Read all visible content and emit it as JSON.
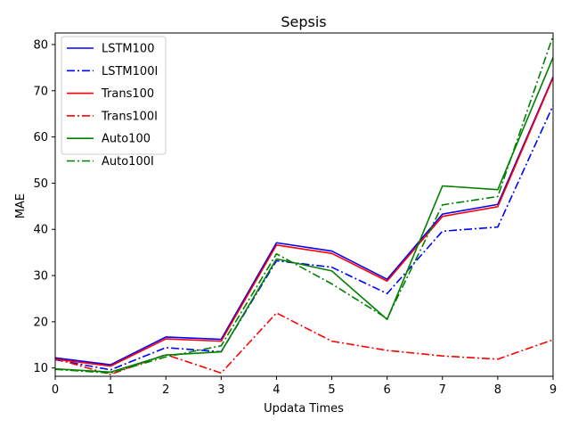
{
  "chart_data": {
    "type": "line",
    "title": "Sepsis",
    "xlabel": "Updata Times",
    "ylabel": "MAE",
    "xlim": [
      0,
      9
    ],
    "ylim": [
      8.2,
      82.5
    ],
    "xticks": [
      0,
      1,
      2,
      3,
      4,
      5,
      6,
      7,
      8,
      9
    ],
    "yticks": [
      10,
      20,
      30,
      40,
      50,
      60,
      70,
      80
    ],
    "grid": false,
    "legend_position": "upper-left",
    "x": [
      0,
      1,
      2,
      3,
      4,
      5,
      6,
      7,
      8,
      9
    ],
    "series": [
      {
        "name": "LSTM100",
        "color": "#0000ff",
        "dash": "solid",
        "values": [
          12.2,
          10.7,
          16.7,
          16.2,
          37.1,
          35.3,
          29.2,
          43.3,
          45.4,
          73.0
        ]
      },
      {
        "name": "LSTM100I",
        "color": "#0000ff",
        "dash": "dashdot",
        "values": [
          11.8,
          9.6,
          14.4,
          13.5,
          33.2,
          31.8,
          26.1,
          39.6,
          40.5,
          66.8
        ]
      },
      {
        "name": "Trans100",
        "color": "#ff0000",
        "dash": "solid",
        "values": [
          11.9,
          10.4,
          16.3,
          15.8,
          36.6,
          34.8,
          28.8,
          42.8,
          44.9,
          72.8
        ]
      },
      {
        "name": "Trans100I",
        "color": "#ff0000",
        "dash": "dashdot",
        "values": [
          12.0,
          8.6,
          12.9,
          8.9,
          21.9,
          15.8,
          13.8,
          12.6,
          11.9,
          16.1
        ]
      },
      {
        "name": "Auto100",
        "color": "#008000",
        "dash": "solid",
        "values": [
          9.8,
          9.1,
          12.8,
          13.5,
          33.6,
          31.0,
          20.5,
          49.4,
          48.6,
          77.2
        ]
      },
      {
        "name": "Auto100I",
        "color": "#008000",
        "dash": "dashdot",
        "values": [
          9.7,
          8.9,
          12.4,
          14.8,
          34.7,
          28.2,
          20.7,
          45.3,
          47.1,
          81.9
        ]
      }
    ]
  }
}
